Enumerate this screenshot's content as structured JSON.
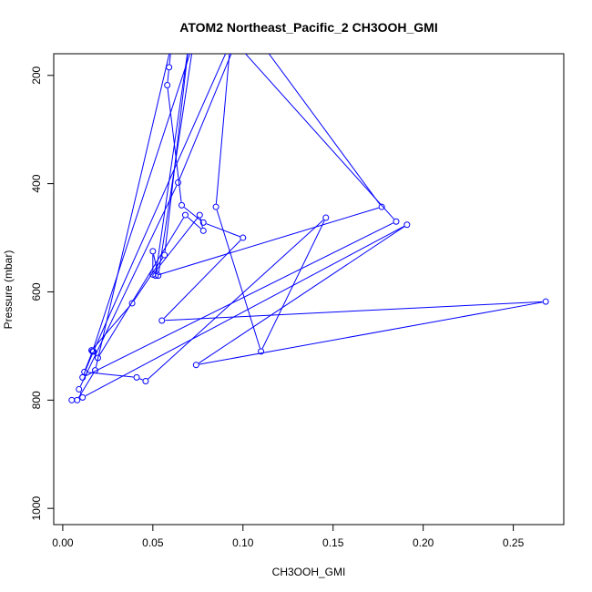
{
  "chart_data": {
    "type": "line",
    "title": "ATOM2 Northeast_Pacific_2 CH3OOH_GMI",
    "xlabel": "CH3OOH_GMI",
    "ylabel": "Pressure (mbar)",
    "xlim": [
      -0.005,
      0.278
    ],
    "ylim": [
      1030,
      160
    ],
    "y_reversed": true,
    "grid": false,
    "x_ticks": [
      0.0,
      0.05,
      0.1,
      0.15,
      0.2,
      0.25
    ],
    "x_tick_labels": [
      "0.00",
      "0.05",
      "0.10",
      "0.15",
      "0.20",
      "0.25"
    ],
    "y_ticks": [
      200,
      400,
      600,
      800,
      1000
    ],
    "y_tick_labels": [
      "200",
      "400",
      "600",
      "800",
      "1000"
    ],
    "series": [
      {
        "color": "#0000ff",
        "marker": "open-circle",
        "x": [
          0.005,
          0.008,
          0.018,
          0.0605,
          0.059,
          0.058,
          0.066,
          0.078,
          0.1,
          0.055,
          0.268,
          0.074,
          0.191,
          0.011,
          0.009,
          0.064,
          0.096,
          0.185,
          0.011,
          0.017,
          0.093,
          0.085,
          0.11,
          0.146,
          0.046,
          0.041,
          0.012,
          0.0165,
          0.0725,
          0.053,
          0.05,
          0.05,
          0.076,
          0.078,
          0.068,
          0.0195,
          0.016,
          0.0385,
          0.0565,
          0.07,
          0.0515,
          0.177,
          0.11
        ],
        "y": [
          800,
          800,
          745,
          140,
          185,
          218,
          440,
          472,
          500,
          653,
          618,
          735,
          476,
          795,
          780,
          398,
          140,
          470,
          758,
          710,
          140,
          443,
          710,
          463,
          765,
          758,
          748,
          710,
          140,
          570,
          525,
          568,
          458,
          487,
          458,
          722,
          708,
          621,
          532,
          140,
          570,
          443,
          140
        ]
      }
    ]
  }
}
